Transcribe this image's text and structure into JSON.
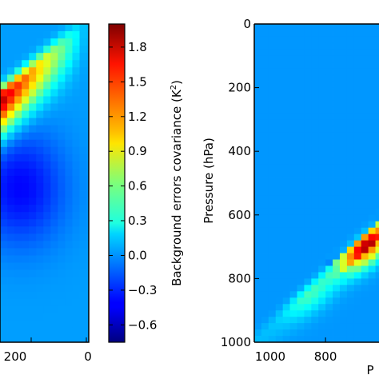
{
  "chart_data": [
    {
      "type": "heatmap",
      "panel": "left",
      "title": "",
      "xlabel": "",
      "ylabel": "",
      "xticks": [
        "200",
        "0"
      ],
      "xlim": [
        500,
        0
      ],
      "peak_value": 1.9,
      "colormap": "jet",
      "note_visible": "diagonal band of high covariance running from lower-left to upper-right, peak near the left edge"
    },
    {
      "type": "colorbar",
      "label": "Background errors covariance (K²)",
      "label_text": "Background errors covariance (K",
      "label_sup": "2",
      "label_tail": ")",
      "ticks": [
        "1.8",
        "1.5",
        "1.2",
        "0.9",
        "0.6",
        "0.3",
        "0.0",
        "−0.3",
        "−0.6"
      ],
      "tick_values": [
        1.8,
        1.5,
        1.2,
        0.9,
        0.6,
        0.3,
        0.0,
        -0.3,
        -0.6
      ],
      "range": [
        -0.75,
        2.0
      ],
      "colormap": "jet"
    },
    {
      "type": "heatmap",
      "panel": "right",
      "title": "",
      "xlabel": "P",
      "ylabel": "Pressure (hPa)",
      "yticks": [
        "0",
        "200",
        "400",
        "600",
        "800",
        "1000"
      ],
      "ytick_values": [
        0,
        200,
        400,
        600,
        800,
        1000
      ],
      "xticks": [
        "1000",
        "800"
      ],
      "xtick_values": [
        1000,
        800
      ],
      "xlim": [
        1000,
        650
      ],
      "ylim": [
        0,
        1000
      ],
      "peak_value": 1.9,
      "peak_pressure": [
        650,
        700
      ],
      "colormap": "jet"
    }
  ]
}
